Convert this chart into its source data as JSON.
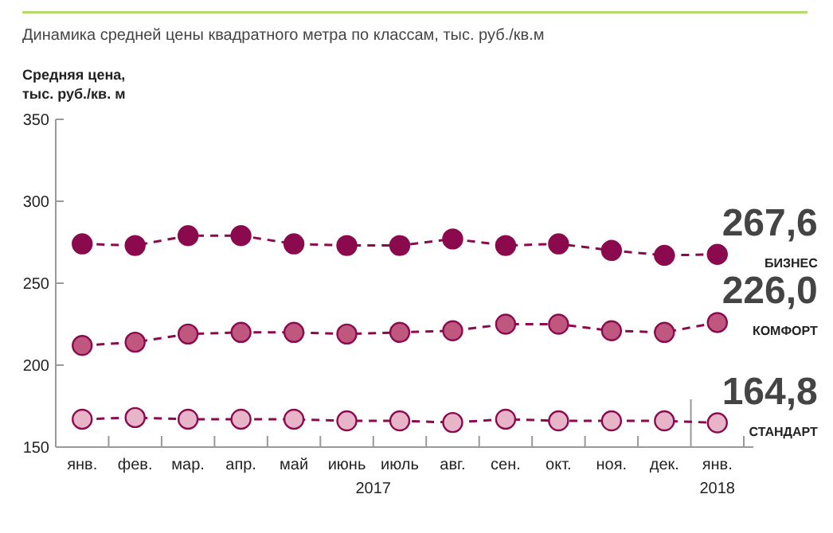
{
  "chart_data": {
    "type": "line",
    "title": "Динамика средней цены квадратного метра по классам, тыс. руб./кв.м",
    "ylabel": "Средняя цена,\nтыс. руб./кв. м",
    "categories": [
      "янв.",
      "фев.",
      "мар.",
      "апр.",
      "май",
      "июнь",
      "июль",
      "авг.",
      "сен.",
      "окт.",
      "ноя.",
      "дек.",
      "янв."
    ],
    "annotations": [
      "2017",
      "2018"
    ],
    "ylim": [
      150,
      350
    ],
    "yticks": [
      150,
      200,
      250,
      300,
      350
    ],
    "grid": false,
    "marker": "circle",
    "line_style": "dashed",
    "series": [
      {
        "name": "БИЗНЕС",
        "color": "#8b0a4e",
        "values": [
          274,
          273,
          279,
          279,
          274,
          273,
          273,
          277,
          273,
          274,
          270,
          267,
          267.6
        ],
        "value_labels": [
          null,
          null,
          null,
          null,
          null,
          null,
          null,
          null,
          null,
          null,
          null,
          null,
          "267,6"
        ]
      },
      {
        "name": "КОМФОРТ",
        "color": "#c0577f",
        "values": [
          212,
          214,
          219,
          220,
          220,
          219,
          220,
          221,
          225,
          225,
          221,
          220,
          226.0
        ],
        "value_labels": [
          null,
          null,
          null,
          null,
          null,
          null,
          null,
          null,
          null,
          null,
          null,
          null,
          "226,0"
        ]
      },
      {
        "name": "СТАНДАРТ",
        "color": "#e8b4c8",
        "values": [
          167,
          168,
          167,
          167,
          167,
          166,
          166,
          165,
          167,
          166,
          166,
          166,
          164.8
        ],
        "value_labels": [
          null,
          null,
          null,
          null,
          null,
          null,
          null,
          null,
          null,
          null,
          null,
          null,
          "164,8"
        ]
      }
    ]
  }
}
